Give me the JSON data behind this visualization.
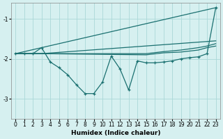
{
  "xlabel": "Humidex (Indice chaleur)",
  "bg_color": "#d6f0f0",
  "grid_color": "#aad8d8",
  "line_color": "#1a7070",
  "xlim": [
    -0.5,
    23.5
  ],
  "ylim": [
    -3.5,
    -0.6
  ],
  "yticks": [
    -3,
    -2,
    -1
  ],
  "xticks": [
    0,
    1,
    2,
    3,
    4,
    5,
    6,
    7,
    8,
    9,
    10,
    11,
    12,
    13,
    14,
    15,
    16,
    17,
    18,
    19,
    20,
    21,
    22,
    23
  ],
  "line1_x": [
    0,
    3,
    23
  ],
  "line1_y": [
    -1.87,
    -1.72,
    -0.72
  ],
  "line2_x": [
    0,
    3,
    23
  ],
  "line2_y": [
    -1.87,
    -1.87,
    -1.55
  ],
  "line3_x": [
    0,
    3,
    15,
    17,
    19,
    21,
    22,
    23
  ],
  "line3_y": [
    -1.87,
    -1.87,
    -1.87,
    -1.82,
    -1.78,
    -1.72,
    -1.68,
    -1.62
  ],
  "line4_x": [
    0,
    3,
    15,
    17,
    19,
    21,
    22,
    23
  ],
  "line4_y": [
    -1.87,
    -1.87,
    -1.9,
    -1.85,
    -1.83,
    -1.78,
    -1.72,
    -1.68
  ],
  "jagged_x": [
    0,
    1,
    2,
    3,
    4,
    5,
    6,
    7,
    8,
    9,
    10,
    11,
    12,
    13,
    14,
    15,
    16,
    17,
    18,
    19,
    20,
    21,
    22,
    23
  ],
  "jagged_y": [
    -1.87,
    -1.87,
    -1.87,
    -1.72,
    -2.08,
    -2.22,
    -2.4,
    -2.65,
    -2.87,
    -2.87,
    -2.58,
    -1.93,
    -2.25,
    -2.78,
    -2.05,
    -2.1,
    -2.1,
    -2.08,
    -2.05,
    -2.0,
    -1.97,
    -1.95,
    -1.87,
    -0.72
  ]
}
